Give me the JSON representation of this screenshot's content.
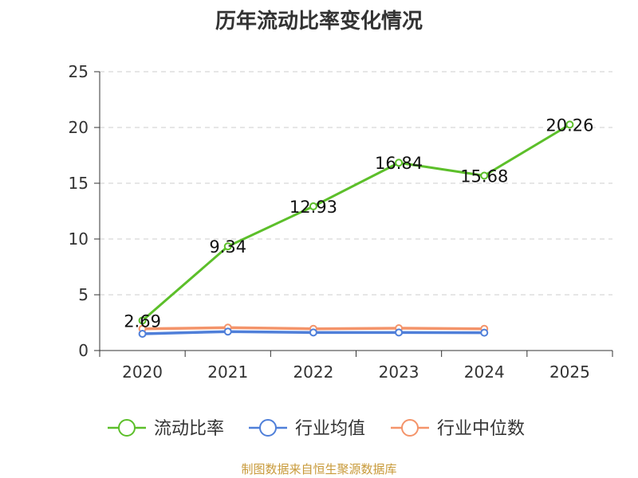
{
  "chart_data": {
    "type": "line",
    "title": "历年流动比率变化情况",
    "categories": [
      "2020",
      "2021",
      "2022",
      "2023",
      "2024",
      "2025"
    ],
    "ylim": [
      0,
      25
    ],
    "yticks": [
      0,
      5,
      10,
      15,
      20,
      25
    ],
    "grid": true,
    "legend_position": "bottom",
    "series": [
      {
        "name": "流动比率",
        "color": "#5cbf2a",
        "values": [
          2.69,
          9.34,
          12.93,
          16.84,
          15.68,
          20.26
        ],
        "labels": [
          "2.69",
          "9.34",
          "12.93",
          "16.84",
          "15.68",
          "20.26"
        ]
      },
      {
        "name": "行业均值",
        "color": "#4f7fd9",
        "values": [
          1.5,
          1.7,
          1.62,
          1.62,
          1.6,
          null
        ]
      },
      {
        "name": "行业中位数",
        "color": "#f4946a",
        "values": [
          1.95,
          2.05,
          1.95,
          2.0,
          1.95,
          null
        ]
      }
    ],
    "source": "制图数据来自恒生聚源数据库"
  }
}
